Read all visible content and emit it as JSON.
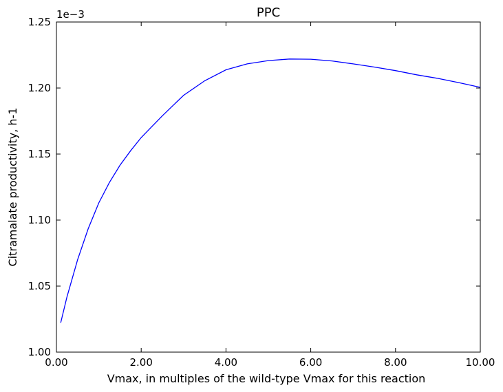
{
  "chart_data": {
    "type": "line",
    "title": "PPC",
    "xlabel": "Vmax, in multiples of the wild-type Vmax for this reaction",
    "ylabel": "Citramalate productivity, h-1",
    "y_multiplier_label": "1e−3",
    "xlim": [
      0,
      10
    ],
    "ylim": [
      1.0,
      1.25
    ],
    "x_ticks": [
      0,
      2,
      4,
      6,
      8,
      10
    ],
    "x_tick_labels": [
      "0.00",
      "2.00",
      "4.00",
      "6.00",
      "8.00",
      "10.00"
    ],
    "y_ticks": [
      1.0,
      1.05,
      1.1,
      1.15,
      1.2,
      1.25
    ],
    "y_tick_labels": [
      "1.00",
      "1.05",
      "1.10",
      "1.15",
      "1.20",
      "1.25"
    ],
    "grid": false,
    "series": [
      {
        "color": "#0000ff",
        "x": [
          0.1,
          0.25,
          0.5,
          0.75,
          1.0,
          1.25,
          1.5,
          1.75,
          2.0,
          2.5,
          3.0,
          3.5,
          4.0,
          4.5,
          5.0,
          5.5,
          6.0,
          6.5,
          7.0,
          7.5,
          8.0,
          8.5,
          9.0,
          9.5,
          10.0
        ],
        "y": [
          1.0222,
          1.042,
          1.07,
          1.0935,
          1.113,
          1.1285,
          1.1415,
          1.1525,
          1.1625,
          1.179,
          1.1945,
          1.2055,
          1.2138,
          1.2183,
          1.2208,
          1.222,
          1.2218,
          1.2205,
          1.2183,
          1.2159,
          1.2132,
          1.21,
          1.2073,
          1.204,
          1.2005
        ]
      }
    ]
  }
}
